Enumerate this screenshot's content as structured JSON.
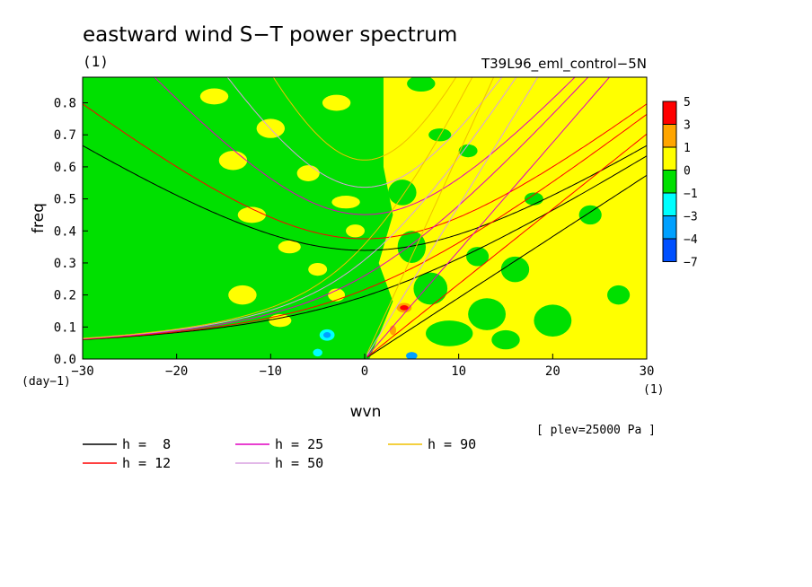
{
  "chart_data": {
    "type": "heatmap",
    "title": "eastward wind S−T power spectrum",
    "subtitle_left": "(1)",
    "subtitle_right": "T39L96_eml_control−5N",
    "xlabel": "wvn",
    "ylabel": "freq",
    "x_unit": "(1)",
    "y_unit": "(day−1)",
    "note": "[ plev=25000 Pa ]",
    "xlim": [
      -30,
      30
    ],
    "ylim": [
      0,
      0.88
    ],
    "xticks": [
      -30,
      -20,
      -10,
      0,
      10,
      20,
      30
    ],
    "xtick_labels": [
      "−30",
      "−20",
      "−10",
      "0",
      "10",
      "20",
      "30"
    ],
    "yticks": [
      0,
      0.1,
      0.2,
      0.3,
      0.4,
      0.5,
      0.6,
      0.7,
      0.8
    ],
    "ytick_labels": [
      "0.0",
      "0.1",
      "0.2",
      "0.3",
      "0.4",
      "0.5",
      "0.6",
      "0.7",
      "0.8"
    ],
    "colorbar": {
      "labels": [
        "5",
        "3",
        "1",
        "0",
        "−1",
        "−3",
        "−4",
        "−7"
      ],
      "colors": [
        "#ff0000",
        "#ffa500",
        "#ffff00",
        "#00e000",
        "#00ffff",
        "#00a0ff",
        "#0050ff"
      ]
    },
    "base_colors": {
      "positive": "#ffff00",
      "negative": "#00e000"
    },
    "blobs": [
      {
        "x": -27,
        "y": 0.8,
        "rx": 3.0,
        "ry": 0.04,
        "c": "#00e000"
      },
      {
        "x": -24,
        "y": 0.62,
        "rx": 2.5,
        "ry": 0.05,
        "c": "#00e000"
      },
      {
        "x": -22,
        "y": 0.45,
        "rx": 3.0,
        "ry": 0.05,
        "c": "#00e000"
      },
      {
        "x": -18,
        "y": 0.72,
        "rx": 2.5,
        "ry": 0.04,
        "c": "#00e000"
      },
      {
        "x": -26,
        "y": 0.25,
        "rx": 2.5,
        "ry": 0.05,
        "c": "#00e000"
      },
      {
        "x": -20,
        "y": 0.15,
        "rx": 2.5,
        "ry": 0.04,
        "c": "#00e000"
      },
      {
        "x": -28,
        "y": 0.5,
        "rx": 2.0,
        "ry": 0.04,
        "c": "#00e000"
      },
      {
        "x": -16,
        "y": 0.3,
        "rx": 2.5,
        "ry": 0.06,
        "c": "#00e000"
      },
      {
        "x": -23,
        "y": 0.05,
        "rx": 3.0,
        "ry": 0.03,
        "c": "#00e000"
      },
      {
        "x": -19,
        "y": 0.56,
        "rx": 2.0,
        "ry": 0.04,
        "c": "#00e000"
      },
      {
        "x": -14,
        "y": 0.62,
        "rx": 1.5,
        "ry": 0.03,
        "c": "#ffff00"
      },
      {
        "x": -10,
        "y": 0.72,
        "rx": 1.5,
        "ry": 0.03,
        "c": "#ffff00"
      },
      {
        "x": -6,
        "y": 0.58,
        "rx": 1.2,
        "ry": 0.025,
        "c": "#ffff00"
      },
      {
        "x": -12,
        "y": 0.45,
        "rx": 1.5,
        "ry": 0.025,
        "c": "#ffff00"
      },
      {
        "x": -8,
        "y": 0.35,
        "rx": 1.2,
        "ry": 0.02,
        "c": "#ffff00"
      },
      {
        "x": -16,
        "y": 0.82,
        "rx": 1.5,
        "ry": 0.025,
        "c": "#ffff00"
      },
      {
        "x": -3,
        "y": 0.8,
        "rx": 1.5,
        "ry": 0.025,
        "c": "#ffff00"
      },
      {
        "x": -5,
        "y": 0.28,
        "rx": 1.0,
        "ry": 0.02,
        "c": "#ffff00"
      },
      {
        "x": -3,
        "y": 0.2,
        "rx": 0.9,
        "ry": 0.02,
        "c": "#ffff00"
      },
      {
        "x": -2,
        "y": 0.49,
        "rx": 1.5,
        "ry": 0.02,
        "c": "#ffff00"
      },
      {
        "x": -13,
        "y": 0.2,
        "rx": 1.5,
        "ry": 0.03,
        "c": "#ffff00"
      },
      {
        "x": -9,
        "y": 0.12,
        "rx": 1.2,
        "ry": 0.02,
        "c": "#ffff00"
      },
      {
        "x": -1,
        "y": 0.4,
        "rx": 1.0,
        "ry": 0.02,
        "c": "#ffff00"
      },
      {
        "x": 6,
        "y": 0.86,
        "rx": 1.5,
        "ry": 0.025,
        "c": "#00e000"
      },
      {
        "x": 8,
        "y": 0.7,
        "rx": 1.2,
        "ry": 0.02,
        "c": "#00e000"
      },
      {
        "x": 4,
        "y": 0.52,
        "rx": 1.5,
        "ry": 0.04,
        "c": "#00e000"
      },
      {
        "x": 5,
        "y": 0.35,
        "rx": 1.5,
        "ry": 0.05,
        "c": "#00e000"
      },
      {
        "x": 7,
        "y": 0.22,
        "rx": 1.8,
        "ry": 0.05,
        "c": "#00e000"
      },
      {
        "x": 9,
        "y": 0.08,
        "rx": 2.5,
        "ry": 0.04,
        "c": "#00e000"
      },
      {
        "x": 13,
        "y": 0.14,
        "rx": 2.0,
        "ry": 0.05,
        "c": "#00e000"
      },
      {
        "x": 16,
        "y": 0.28,
        "rx": 1.5,
        "ry": 0.04,
        "c": "#00e000"
      },
      {
        "x": 20,
        "y": 0.12,
        "rx": 2.0,
        "ry": 0.05,
        "c": "#00e000"
      },
      {
        "x": 12,
        "y": 0.32,
        "rx": 1.2,
        "ry": 0.03,
        "c": "#00e000"
      },
      {
        "x": 11,
        "y": 0.65,
        "rx": 1.0,
        "ry": 0.02,
        "c": "#00e000"
      },
      {
        "x": 24,
        "y": 0.45,
        "rx": 1.2,
        "ry": 0.03,
        "c": "#00e000"
      },
      {
        "x": 27,
        "y": 0.2,
        "rx": 1.2,
        "ry": 0.03,
        "c": "#00e000"
      },
      {
        "x": 18,
        "y": 0.5,
        "rx": 1.0,
        "ry": 0.02,
        "c": "#00e000"
      },
      {
        "x": 15,
        "y": 0.06,
        "rx": 1.5,
        "ry": 0.03,
        "c": "#00e000"
      },
      {
        "x": 4.2,
        "y": 0.16,
        "rx": 0.8,
        "ry": 0.015,
        "c": "#ffa500"
      },
      {
        "x": 4.2,
        "y": 0.16,
        "rx": 0.45,
        "ry": 0.008,
        "c": "#ff0000"
      },
      {
        "x": 3.0,
        "y": 0.09,
        "rx": 0.35,
        "ry": 0.015,
        "c": "#ffa500"
      },
      {
        "x": -4,
        "y": 0.075,
        "rx": 0.8,
        "ry": 0.018,
        "c": "#00ffff"
      },
      {
        "x": -4,
        "y": 0.075,
        "rx": 0.4,
        "ry": 0.009,
        "c": "#00a0ff"
      },
      {
        "x": -5,
        "y": 0.02,
        "rx": 0.5,
        "ry": 0.012,
        "c": "#00ffff"
      },
      {
        "x": 5,
        "y": 0.01,
        "rx": 0.6,
        "ry": 0.012,
        "c": "#00a0ff"
      }
    ],
    "series": [
      {
        "name": "h =  8",
        "h": 8,
        "color": "#000000"
      },
      {
        "name": "h = 12",
        "h": 12,
        "color": "#ff0000"
      },
      {
        "name": "h = 25",
        "h": 25,
        "color": "#e000c0"
      },
      {
        "name": "h = 50",
        "h": 50,
        "color": "#d8a0e0"
      },
      {
        "name": "h = 90",
        "h": 90,
        "color": "#f0c000"
      }
    ]
  }
}
